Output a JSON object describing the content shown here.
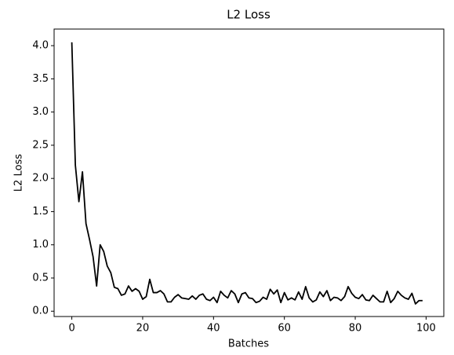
{
  "chart_data": {
    "type": "line",
    "title": "L2 Loss",
    "xlabel": "Batches",
    "ylabel": "L2 Loss",
    "x": [
      0,
      1,
      2,
      3,
      4,
      5,
      6,
      7,
      8,
      9,
      10,
      11,
      12,
      13,
      14,
      15,
      16,
      17,
      18,
      19,
      20,
      21,
      22,
      23,
      24,
      25,
      26,
      27,
      28,
      29,
      30,
      31,
      32,
      33,
      34,
      35,
      36,
      37,
      38,
      39,
      40,
      41,
      42,
      43,
      44,
      45,
      46,
      47,
      48,
      49,
      50,
      51,
      52,
      53,
      54,
      55,
      56,
      57,
      58,
      59,
      60,
      61,
      62,
      63,
      64,
      65,
      66,
      67,
      68,
      69,
      70,
      71,
      72,
      73,
      74,
      75,
      76,
      77,
      78,
      79,
      80,
      81,
      82,
      83,
      84,
      85,
      86,
      87,
      88,
      89,
      90,
      91,
      92,
      93,
      94,
      95,
      96,
      97,
      98,
      99
    ],
    "series": [
      {
        "name": "L2 Loss",
        "color": "#000000",
        "values": [
          4.05,
          2.2,
          1.65,
          2.1,
          1.32,
          1.08,
          0.82,
          0.38,
          1.0,
          0.9,
          0.68,
          0.58,
          0.36,
          0.34,
          0.24,
          0.26,
          0.38,
          0.3,
          0.34,
          0.3,
          0.18,
          0.22,
          0.48,
          0.28,
          0.28,
          0.31,
          0.26,
          0.14,
          0.14,
          0.21,
          0.25,
          0.2,
          0.19,
          0.18,
          0.23,
          0.18,
          0.24,
          0.26,
          0.18,
          0.16,
          0.21,
          0.13,
          0.3,
          0.24,
          0.2,
          0.31,
          0.26,
          0.13,
          0.26,
          0.28,
          0.2,
          0.19,
          0.13,
          0.15,
          0.21,
          0.18,
          0.33,
          0.26,
          0.32,
          0.13,
          0.28,
          0.17,
          0.2,
          0.17,
          0.29,
          0.18,
          0.37,
          0.2,
          0.14,
          0.17,
          0.29,
          0.22,
          0.31,
          0.16,
          0.21,
          0.2,
          0.16,
          0.22,
          0.37,
          0.27,
          0.21,
          0.19,
          0.25,
          0.17,
          0.16,
          0.24,
          0.19,
          0.14,
          0.14,
          0.3,
          0.13,
          0.19,
          0.3,
          0.24,
          0.2,
          0.18,
          0.27,
          0.11,
          0.16,
          0.16
        ]
      }
    ],
    "xlim": [
      -5,
      105
    ],
    "xticks": [
      0,
      20,
      40,
      60,
      80,
      100
    ],
    "ylim": [
      -0.08,
      4.25
    ],
    "yticks": [
      {
        "value": 0,
        "label": "0.0"
      },
      0.5,
      {
        "value": 1,
        "label": "1.0"
      },
      1.5,
      {
        "value": 2,
        "label": "2.0"
      },
      2.5,
      {
        "value": 3,
        "label": "3.0"
      },
      3.5,
      {
        "value": 4,
        "label": "4.0"
      }
    ]
  }
}
